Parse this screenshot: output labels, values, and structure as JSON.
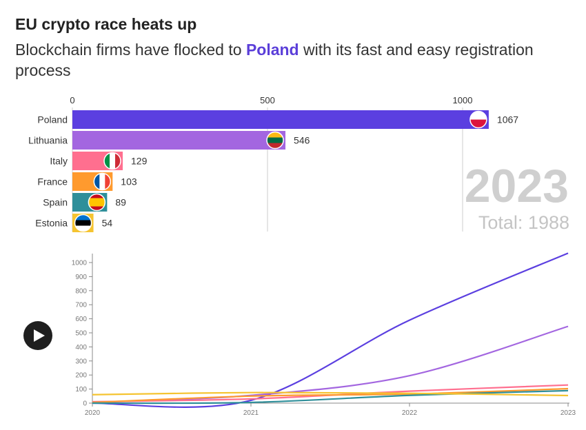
{
  "header": {
    "title": "EU crypto race heats up",
    "subtitle_pre": "Blockchain firms have flocked to ",
    "subtitle_highlight": "Poland",
    "subtitle_post": " with its fast and easy registration process"
  },
  "colors": {
    "Poland": "#5b3fe0",
    "Lithuania": "#a366e0",
    "Italy": "#ff6f8f",
    "France": "#ff9a2e",
    "Spain": "#2f8f9a",
    "Estonia": "#f5c431"
  },
  "chart_data": [
    {
      "type": "bar",
      "orientation": "horizontal",
      "title": "EU crypto race heats up",
      "categories": [
        "Poland",
        "Lithuania",
        "Italy",
        "France",
        "Spain",
        "Estonia"
      ],
      "values": [
        1067,
        546,
        129,
        103,
        89,
        54
      ],
      "xticks": [
        0,
        500,
        1000
      ],
      "xlim": [
        0,
        1100
      ],
      "year": "2023",
      "total_label": "Total: 1988",
      "flag_icons": [
        "poland-flag-icon",
        "lithuania-flag-icon",
        "italy-flag-icon",
        "france-flag-icon",
        "spain-flag-icon",
        "estonia-flag-icon"
      ]
    },
    {
      "type": "line",
      "x": [
        2020,
        2021,
        2022,
        2023
      ],
      "xticks": [
        "2020",
        "2021",
        "2022",
        "2023"
      ],
      "yticks": [
        0,
        100,
        200,
        300,
        400,
        500,
        600,
        700,
        800,
        900,
        1000
      ],
      "ylim": [
        0,
        1067
      ],
      "series": [
        {
          "name": "Poland",
          "values": [
            0,
            20,
            590,
            1067
          ]
        },
        {
          "name": "Lithuania",
          "values": [
            5,
            55,
            195,
            546
          ]
        },
        {
          "name": "Italy",
          "values": [
            10,
            30,
            85,
            129
          ]
        },
        {
          "name": "France",
          "values": [
            5,
            50,
            65,
            103
          ]
        },
        {
          "name": "Spain",
          "values": [
            0,
            5,
            55,
            89
          ]
        },
        {
          "name": "Estonia",
          "values": [
            60,
            75,
            70,
            54
          ]
        }
      ]
    }
  ],
  "controls": {
    "play_icon": "play-icon"
  }
}
